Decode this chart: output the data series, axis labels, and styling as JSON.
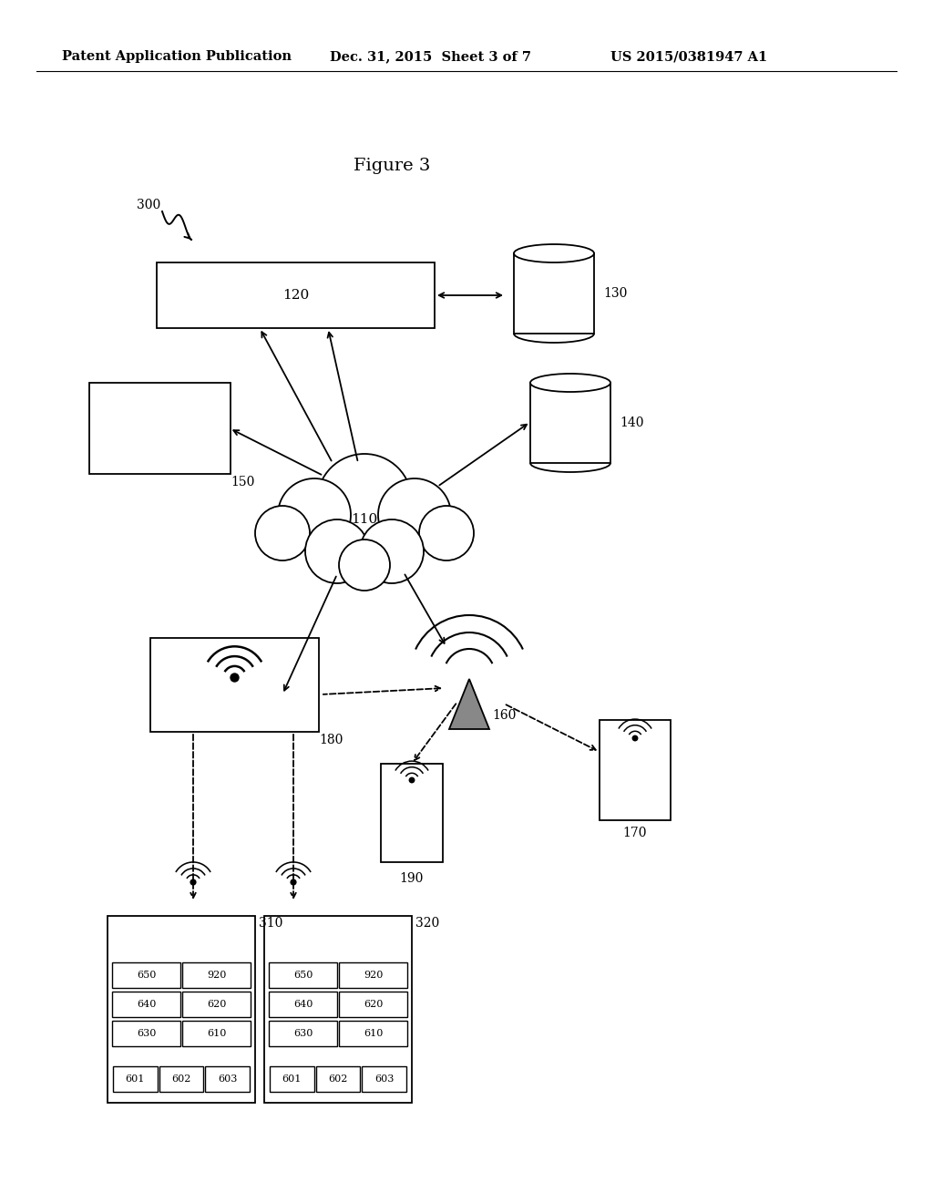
{
  "bg_color": "#ffffff",
  "header_left": "Patent Application Publication",
  "header_mid": "Dec. 31, 2015  Sheet 3 of 7",
  "header_right": "US 2015/0381947 A1",
  "figure_label": "Figure 3",
  "label_300": "300",
  "label_120": "120",
  "label_130": "130",
  "label_140": "140",
  "label_150": "150",
  "label_110": "110",
  "label_160": "160",
  "label_180": "180",
  "label_170": "170",
  "label_190": "190",
  "label_310": "310",
  "label_320": "320",
  "labels_601_603": [
    "601",
    "602",
    "603"
  ],
  "labels_grid_left": [
    "630",
    "610",
    "640",
    "620",
    "650",
    "920"
  ],
  "labels_grid_right": [
    "630",
    "610",
    "640",
    "620",
    "650",
    "920"
  ]
}
